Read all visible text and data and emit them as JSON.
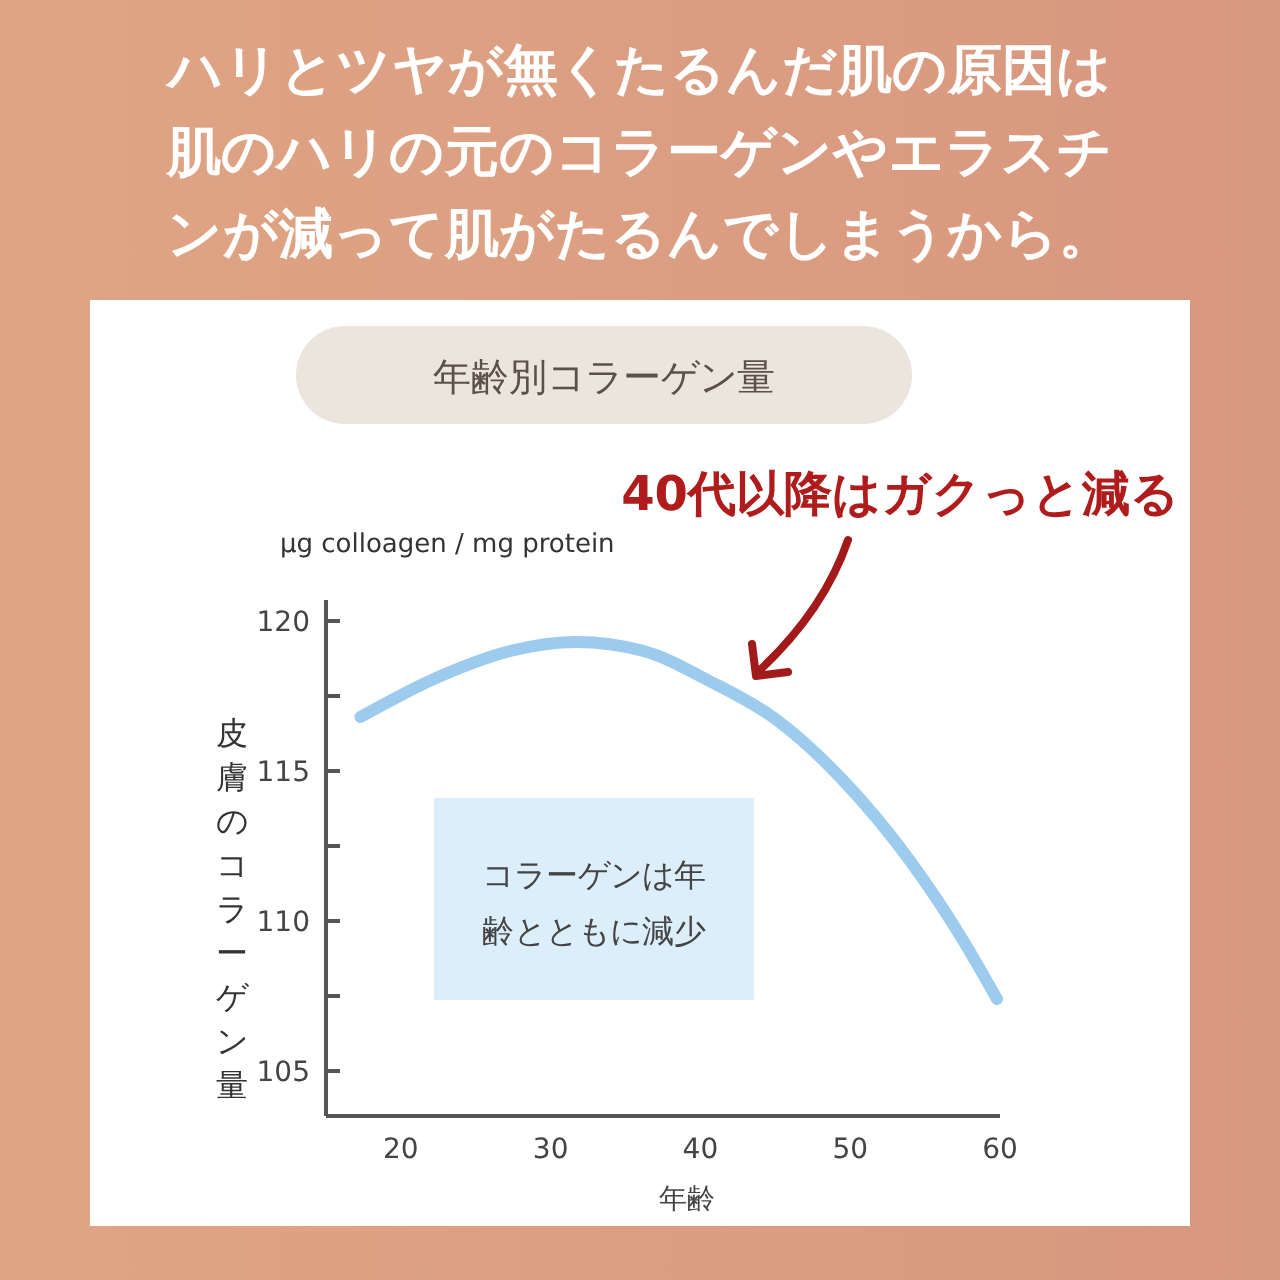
{
  "chart_data": {
    "type": "line",
    "title": "ハリとツヤが無くたるんだ肌の原因は肌のハリの元のコラーゲンやエラスチンが減って肌がたるんでしまうから。",
    "subtitle": "年齢別コラーゲン量",
    "xlabel": "年齢",
    "ylabel": "皮膚のコラーゲン量",
    "annotations": [
      "μg colloagen / mg protein",
      "40代以降はガクっと減る",
      "コラーゲンは年齢とともに減少"
    ],
    "x": [
      17.3,
      22.8,
      27.3,
      31.7,
      36.2,
      40.6,
      45.1,
      49.5,
      54,
      57.6,
      59.8
    ],
    "series": [
      {
        "color": "#9ccbee",
        "values": [
          116.8,
          118.2,
          119.0,
          119.3,
          119.0,
          118.0,
          116.7,
          114.7,
          112.0,
          109.3,
          107.4
        ]
      }
    ],
    "xlim": [
      15,
      60
    ],
    "xticks": [
      20,
      30,
      40,
      50,
      60
    ],
    "ylim": [
      103.5,
      120.7
    ],
    "yticks": [
      {
        "value": 105,
        "label": "105"
      },
      {
        "value": 107.5,
        "label": null
      },
      {
        "value": 110,
        "label": "110"
      },
      {
        "value": 112.5,
        "label": null
      },
      {
        "value": 115,
        "label": "115"
      },
      {
        "value": 117.5,
        "label": null
      },
      {
        "value": 120,
        "label": "120"
      }
    ],
    "grid": false,
    "marker": "none",
    "line_style": "solid"
  }
}
